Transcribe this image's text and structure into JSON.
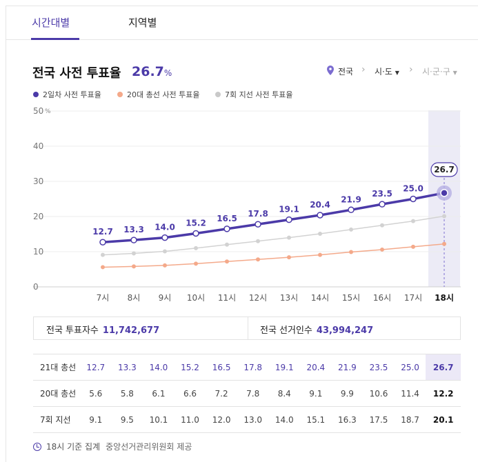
{
  "tabs": [
    {
      "label": "시간대별",
      "active": true
    },
    {
      "label": "지역별",
      "active": false
    }
  ],
  "header": {
    "title": "전국 사전 투표율",
    "rate": "26.7",
    "rate_unit": "%"
  },
  "region_nav": {
    "level1": "전국",
    "level2": "시·도",
    "level3": "시·군·구"
  },
  "legend": [
    {
      "label": "2일차 사전 투표율",
      "color": "#4b3aa8"
    },
    {
      "label": "20대 총선 사전 투표율",
      "color": "#f4a98a"
    },
    {
      "label": "7회 지선 사전 투표율",
      "color": "#c9c9c9"
    }
  ],
  "chart_data": {
    "type": "line",
    "x": [
      "7시",
      "8시",
      "9시",
      "10시",
      "11시",
      "12시",
      "13시",
      "14시",
      "15시",
      "16시",
      "17시",
      "18시"
    ],
    "ylim": [
      0,
      50
    ],
    "yticks": [
      "0",
      "10",
      "20",
      "30",
      "40",
      "50"
    ],
    "y_unit": "%",
    "highlight_x": "18시",
    "series": [
      {
        "name": "2일차 사전 투표율",
        "values": [
          12.7,
          13.3,
          14.0,
          15.2,
          16.5,
          17.8,
          19.1,
          20.4,
          21.9,
          23.5,
          25.0,
          26.7
        ]
      },
      {
        "name": "20대 총선 사전 투표율",
        "values": [
          5.6,
          5.8,
          6.1,
          6.6,
          7.2,
          7.8,
          8.4,
          9.1,
          9.9,
          10.6,
          11.4,
          12.2
        ]
      },
      {
        "name": "7회 지선 사전 투표율",
        "values": [
          9.1,
          9.5,
          10.1,
          11.0,
          12.0,
          13.0,
          14.0,
          15.1,
          16.3,
          17.5,
          18.7,
          20.1
        ]
      }
    ],
    "data_labels": [
      "12.7",
      "13.3",
      "14.0",
      "15.2",
      "16.5",
      "17.8",
      "19.1",
      "20.4",
      "21.9",
      "23.5",
      "25.0",
      "26.7"
    ]
  },
  "summary": {
    "voters_label": "전국 투표자수",
    "voters_value": "11,742,677",
    "electorate_label": "전국 선거인수",
    "electorate_value": "43,994,247"
  },
  "table": {
    "rows": [
      {
        "label": "21대 총선",
        "values": [
          "12.7",
          "13.3",
          "14.0",
          "15.2",
          "16.5",
          "17.8",
          "19.1",
          "20.4",
          "21.9",
          "23.5",
          "25.0",
          "26.7"
        ]
      },
      {
        "label": "20대 총선",
        "values": [
          "5.6",
          "5.8",
          "6.1",
          "6.6",
          "7.2",
          "7.8",
          "8.4",
          "9.1",
          "9.9",
          "10.6",
          "11.4",
          "12.2"
        ]
      },
      {
        "label": "7회 지선",
        "values": [
          "9.1",
          "9.5",
          "10.1",
          "11.0",
          "12.0",
          "13.0",
          "14.0",
          "15.1",
          "16.3",
          "17.5",
          "18.7",
          "20.1"
        ]
      }
    ]
  },
  "footer": {
    "basis": "18시 기준 집계",
    "source": "중앙선거관리위원회 제공"
  }
}
